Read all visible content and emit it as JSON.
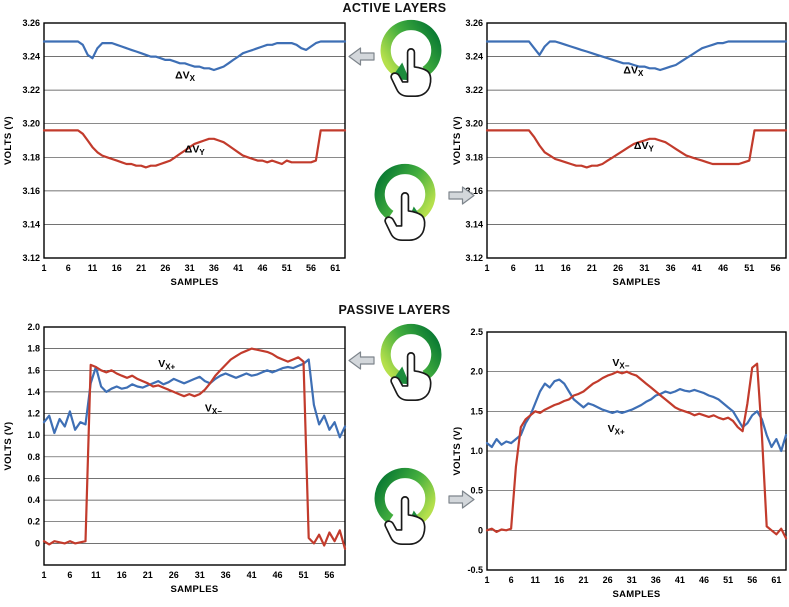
{
  "titles": {
    "active": "ACTIVE LAYERS",
    "passive": "PASSIVE LAYERS"
  },
  "colors": {
    "blue": "#3e6fb5",
    "red": "#c23b2c",
    "grid": "#444444",
    "frame": "#000000",
    "green_dark": "#0b7b33",
    "green_light": "#b5e04c",
    "arrow_gray": "#d3d7db"
  },
  "gestures": {
    "active": [
      {
        "rotation": "counterclockwise",
        "arrow": "left"
      },
      {
        "rotation": "clockwise",
        "arrow": "right"
      }
    ],
    "passive": [
      {
        "rotation": "counterclockwise",
        "arrow": "left"
      },
      {
        "rotation": "clockwise",
        "arrow": "right"
      }
    ]
  },
  "chart_data": [
    {
      "id": "active-left",
      "type": "line",
      "xlabel": "SAMPLES",
      "ylabel": "VOLTS (V)",
      "xlim": [
        1,
        63
      ],
      "x_ticks": [
        1,
        6,
        11,
        16,
        21,
        26,
        31,
        36,
        41,
        46,
        51,
        56,
        61
      ],
      "ylim": [
        3.12,
        3.26
      ],
      "y_tick_values": [
        3.26,
        3.24,
        3.22,
        3.2,
        3.18,
        3.16,
        3.14,
        3.12
      ],
      "y_tick_labels": [
        "3.26",
        "3.24",
        "3.22",
        "3.20",
        "3.18",
        "3.16",
        "3.14",
        "3.12"
      ],
      "series": [
        {
          "name": "ΔVX",
          "color_key": "blue",
          "values": [
            3.249,
            3.249,
            3.249,
            3.249,
            3.249,
            3.249,
            3.249,
            3.249,
            3.247,
            3.241,
            3.239,
            3.245,
            3.248,
            3.248,
            3.248,
            3.247,
            3.246,
            3.245,
            3.244,
            3.243,
            3.242,
            3.241,
            3.24,
            3.24,
            3.239,
            3.238,
            3.238,
            3.237,
            3.236,
            3.236,
            3.235,
            3.234,
            3.234,
            3.233,
            3.233,
            3.232,
            3.233,
            3.234,
            3.236,
            3.238,
            3.24,
            3.242,
            3.243,
            3.244,
            3.245,
            3.246,
            3.247,
            3.247,
            3.248,
            3.248,
            3.248,
            3.248,
            3.247,
            3.245,
            3.244,
            3.246,
            3.248,
            3.249,
            3.249,
            3.249,
            3.249,
            3.249,
            3.249
          ]
        },
        {
          "name": "ΔVY",
          "color_key": "red",
          "values": [
            3.196,
            3.196,
            3.196,
            3.196,
            3.196,
            3.196,
            3.196,
            3.196,
            3.194,
            3.19,
            3.186,
            3.183,
            3.181,
            3.18,
            3.179,
            3.178,
            3.177,
            3.176,
            3.176,
            3.175,
            3.175,
            3.174,
            3.175,
            3.175,
            3.176,
            3.177,
            3.178,
            3.18,
            3.182,
            3.184,
            3.186,
            3.188,
            3.189,
            3.19,
            3.191,
            3.191,
            3.19,
            3.189,
            3.187,
            3.185,
            3.183,
            3.181,
            3.18,
            3.179,
            3.178,
            3.178,
            3.177,
            3.178,
            3.177,
            3.176,
            3.178,
            3.177,
            3.177,
            3.177,
            3.177,
            3.177,
            3.178,
            3.196,
            3.196,
            3.196,
            3.196,
            3.196,
            3.196
          ]
        }
      ],
      "annotations": [
        {
          "text": "ΔV",
          "sub": "X",
          "x": 28,
          "y": 3.227
        },
        {
          "text": "ΔV",
          "sub": "Y",
          "x": 30,
          "y": 3.183
        }
      ]
    },
    {
      "id": "active-right",
      "type": "line",
      "xlabel": "SAMPLES",
      "ylabel": "VOLTS (V)",
      "xlim": [
        1,
        58
      ],
      "x_ticks": [
        1,
        6,
        11,
        16,
        21,
        26,
        31,
        36,
        41,
        46,
        51,
        56
      ],
      "ylim": [
        3.12,
        3.26
      ],
      "y_tick_values": [
        3.26,
        3.24,
        3.22,
        3.2,
        3.18,
        3.16,
        3.14,
        3.12
      ],
      "y_tick_labels": [
        "3.26",
        "3.24",
        "3.22",
        "3.20",
        "3.18",
        "3.16",
        "3.14",
        "3.12"
      ],
      "series": [
        {
          "name": "ΔVX",
          "color_key": "blue",
          "values": [
            3.249,
            3.249,
            3.249,
            3.249,
            3.249,
            3.249,
            3.249,
            3.249,
            3.249,
            3.245,
            3.241,
            3.246,
            3.249,
            3.249,
            3.248,
            3.247,
            3.246,
            3.245,
            3.244,
            3.243,
            3.242,
            3.241,
            3.24,
            3.239,
            3.238,
            3.237,
            3.236,
            3.236,
            3.235,
            3.234,
            3.234,
            3.233,
            3.233,
            3.232,
            3.233,
            3.234,
            3.235,
            3.237,
            3.239,
            3.241,
            3.243,
            3.245,
            3.246,
            3.247,
            3.248,
            3.248,
            3.249,
            3.249,
            3.249,
            3.249,
            3.249,
            3.249,
            3.249,
            3.249,
            3.249,
            3.249,
            3.249,
            3.249
          ]
        },
        {
          "name": "ΔVY",
          "color_key": "red",
          "values": [
            3.196,
            3.196,
            3.196,
            3.196,
            3.196,
            3.196,
            3.196,
            3.196,
            3.196,
            3.192,
            3.187,
            3.183,
            3.181,
            3.179,
            3.178,
            3.177,
            3.176,
            3.175,
            3.175,
            3.174,
            3.175,
            3.175,
            3.176,
            3.178,
            3.18,
            3.182,
            3.184,
            3.186,
            3.188,
            3.189,
            3.19,
            3.191,
            3.191,
            3.19,
            3.189,
            3.187,
            3.185,
            3.183,
            3.181,
            3.18,
            3.179,
            3.178,
            3.177,
            3.176,
            3.176,
            3.176,
            3.176,
            3.176,
            3.176,
            3.177,
            3.178,
            3.196,
            3.196,
            3.196,
            3.196,
            3.196,
            3.196,
            3.196
          ]
        }
      ],
      "annotations": [
        {
          "text": "ΔV",
          "sub": "X",
          "x": 27,
          "y": 3.23
        },
        {
          "text": "ΔV",
          "sub": "Y",
          "x": 29,
          "y": 3.185
        }
      ]
    },
    {
      "id": "passive-left",
      "type": "line",
      "xlabel": "SAMPLES",
      "ylabel": "VOLTS (V)",
      "xlim": [
        1,
        59
      ],
      "x_ticks": [
        1,
        6,
        11,
        16,
        21,
        26,
        31,
        36,
        41,
        46,
        51,
        56
      ],
      "ylim": [
        -0.2,
        2.0
      ],
      "y_tick_values": [
        2.0,
        1.8,
        1.6,
        1.4,
        1.2,
        1.0,
        0.8,
        0.6,
        0.4,
        0.2,
        0.0
      ],
      "y_tick_labels": [
        "2.0",
        "1.8",
        "1.6",
        "1.4",
        "1.2",
        "1.0",
        "0.8",
        "0.6",
        "0.4",
        "0.2",
        "0"
      ],
      "series": [
        {
          "name": "VX+",
          "color_key": "blue",
          "values": [
            1.12,
            1.18,
            1.02,
            1.15,
            1.08,
            1.22,
            1.05,
            1.12,
            1.1,
            1.48,
            1.63,
            1.45,
            1.4,
            1.43,
            1.45,
            1.43,
            1.44,
            1.47,
            1.45,
            1.44,
            1.46,
            1.48,
            1.5,
            1.47,
            1.49,
            1.52,
            1.5,
            1.48,
            1.5,
            1.52,
            1.54,
            1.5,
            1.48,
            1.52,
            1.55,
            1.57,
            1.55,
            1.53,
            1.55,
            1.57,
            1.55,
            1.56,
            1.58,
            1.6,
            1.58,
            1.6,
            1.62,
            1.63,
            1.62,
            1.64,
            1.66,
            1.7,
            1.28,
            1.1,
            1.18,
            1.05,
            1.12,
            0.98,
            1.08
          ]
        },
        {
          "name": "VX−",
          "color_key": "red",
          "values": [
            0.02,
            -0.01,
            0.02,
            0.01,
            0.0,
            0.02,
            0.0,
            0.01,
            0.02,
            1.65,
            1.63,
            1.6,
            1.58,
            1.6,
            1.57,
            1.55,
            1.53,
            1.55,
            1.52,
            1.5,
            1.48,
            1.45,
            1.46,
            1.44,
            1.42,
            1.4,
            1.38,
            1.36,
            1.38,
            1.36,
            1.38,
            1.42,
            1.48,
            1.55,
            1.6,
            1.65,
            1.7,
            1.73,
            1.76,
            1.78,
            1.8,
            1.79,
            1.78,
            1.77,
            1.75,
            1.72,
            1.7,
            1.68,
            1.7,
            1.72,
            1.68,
            0.05,
            0.0,
            0.08,
            -0.02,
            0.1,
            0.02,
            0.12,
            -0.05
          ]
        }
      ],
      "annotations": [
        {
          "text": "V",
          "sub": "X+",
          "x": 23,
          "y": 1.63
        },
        {
          "text": "V",
          "sub": "X−",
          "x": 32,
          "y": 1.22
        }
      ]
    },
    {
      "id": "passive-right",
      "type": "line",
      "xlabel": "SAMPLES",
      "ylabel": "VOLTS (V)",
      "xlim": [
        1,
        63
      ],
      "x_ticks": [
        1,
        6,
        11,
        16,
        21,
        26,
        31,
        36,
        41,
        46,
        51,
        56,
        61
      ],
      "ylim": [
        -0.5,
        2.5
      ],
      "y_tick_values": [
        2.5,
        2.0,
        1.5,
        1.0,
        0.5,
        0.0,
        -0.5
      ],
      "y_tick_labels": [
        "2.5",
        "2.0",
        "1.5",
        "1.0",
        "0.5",
        "0",
        "-0.5"
      ],
      "series": [
        {
          "name": "VX+",
          "color_key": "blue",
          "values": [
            1.1,
            1.05,
            1.15,
            1.08,
            1.12,
            1.1,
            1.15,
            1.2,
            1.35,
            1.45,
            1.6,
            1.75,
            1.85,
            1.8,
            1.88,
            1.9,
            1.85,
            1.75,
            1.65,
            1.6,
            1.55,
            1.6,
            1.58,
            1.55,
            1.52,
            1.5,
            1.48,
            1.5,
            1.48,
            1.5,
            1.52,
            1.55,
            1.58,
            1.62,
            1.65,
            1.7,
            1.72,
            1.75,
            1.73,
            1.75,
            1.78,
            1.76,
            1.75,
            1.77,
            1.75,
            1.73,
            1.7,
            1.68,
            1.65,
            1.6,
            1.55,
            1.5,
            1.4,
            1.3,
            1.35,
            1.45,
            1.5,
            1.4,
            1.2,
            1.05,
            1.15,
            1.0,
            1.2
          ]
        },
        {
          "name": "VX−",
          "color_key": "red",
          "values": [
            0.0,
            0.02,
            -0.02,
            0.01,
            0.0,
            0.02,
            0.8,
            1.3,
            1.4,
            1.45,
            1.5,
            1.48,
            1.52,
            1.55,
            1.58,
            1.6,
            1.63,
            1.65,
            1.7,
            1.72,
            1.75,
            1.8,
            1.85,
            1.88,
            1.92,
            1.95,
            1.97,
            2.0,
            1.98,
            2.0,
            1.97,
            1.95,
            1.9,
            1.85,
            1.8,
            1.75,
            1.7,
            1.65,
            1.6,
            1.55,
            1.52,
            1.5,
            1.48,
            1.45,
            1.47,
            1.45,
            1.43,
            1.45,
            1.42,
            1.4,
            1.42,
            1.38,
            1.3,
            1.25,
            1.6,
            2.05,
            2.1,
            1.2,
            0.05,
            0.0,
            -0.05,
            0.02,
            -0.1
          ]
        }
      ],
      "annotations": [
        {
          "text": "V",
          "sub": "X−",
          "x": 27,
          "y": 2.07
        },
        {
          "text": "V",
          "sub": "X+",
          "x": 26,
          "y": 1.24
        }
      ]
    }
  ]
}
